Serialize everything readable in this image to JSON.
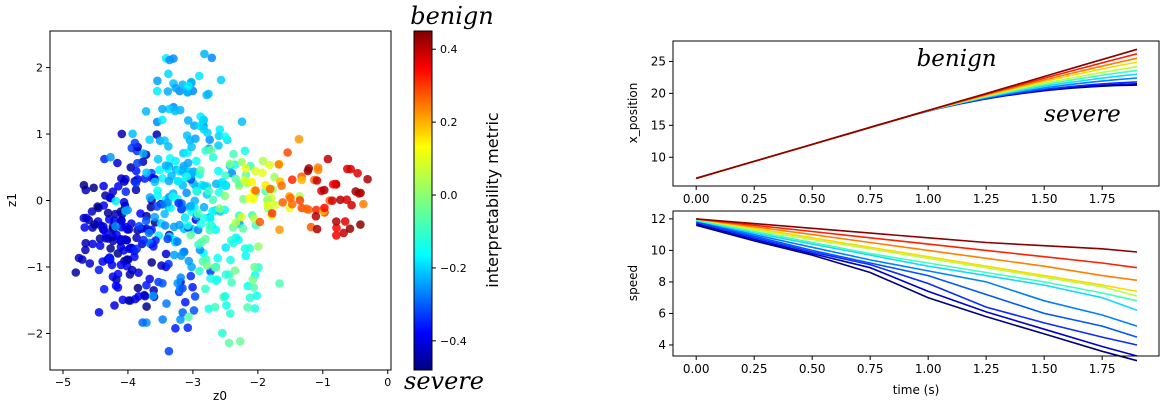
{
  "chart_data": [
    {
      "type": "scatter",
      "xlabel": "z0",
      "ylabel": "z1",
      "xlim": [
        -5.2,
        0.05
      ],
      "ylim": [
        -2.55,
        2.55
      ],
      "xticks": [
        -5,
        -4,
        -3,
        -2,
        -1,
        0
      ],
      "yticks": [
        -2,
        -1,
        0,
        1,
        2
      ],
      "color_metric_range": [
        -0.48,
        0.45
      ],
      "colormap": "jet",
      "clusters": [
        {
          "cx": -4.2,
          "cy": -0.45,
          "sx": 0.32,
          "sy": 0.42,
          "n": 95,
          "cmin": -0.48,
          "cmax": -0.36
        },
        {
          "cx": -3.95,
          "cy": -1.15,
          "sx": 0.3,
          "sy": 0.38,
          "n": 35,
          "cmin": -0.45,
          "cmax": -0.32
        },
        {
          "cx": -3.85,
          "cy": 0.55,
          "sx": 0.28,
          "sy": 0.45,
          "n": 25,
          "cmin": -0.44,
          "cmax": -0.3
        },
        {
          "cx": -3.15,
          "cy": 1.15,
          "sx": 0.32,
          "sy": 0.55,
          "n": 70,
          "cmin": -0.24,
          "cmax": -0.14
        },
        {
          "cx": -3.1,
          "cy": 0.2,
          "sx": 0.35,
          "sy": 0.5,
          "n": 70,
          "cmin": -0.22,
          "cmax": -0.12
        },
        {
          "cx": -3.35,
          "cy": -0.5,
          "sx": 0.4,
          "sy": 0.5,
          "n": 40,
          "cmin": -0.36,
          "cmax": -0.2
        },
        {
          "cx": -3.4,
          "cy": -1.55,
          "sx": 0.35,
          "sy": 0.35,
          "n": 20,
          "cmin": -0.36,
          "cmax": -0.22
        },
        {
          "cx": -2.6,
          "cy": -0.4,
          "sx": 0.35,
          "sy": 0.55,
          "n": 40,
          "cmin": -0.14,
          "cmax": -0.04
        },
        {
          "cx": -2.35,
          "cy": -1.4,
          "sx": 0.3,
          "sy": 0.4,
          "n": 30,
          "cmin": -0.12,
          "cmax": -0.02
        },
        {
          "cx": -2.4,
          "cy": 0.35,
          "sx": 0.3,
          "sy": 0.35,
          "n": 20,
          "cmin": -0.12,
          "cmax": 0.02
        },
        {
          "cx": -2.0,
          "cy": 0.05,
          "sx": 0.28,
          "sy": 0.35,
          "n": 28,
          "cmin": 0.0,
          "cmax": 0.12
        },
        {
          "cx": -1.35,
          "cy": 0.15,
          "sx": 0.3,
          "sy": 0.33,
          "n": 30,
          "cmin": 0.16,
          "cmax": 0.3
        },
        {
          "cx": -0.75,
          "cy": 0.05,
          "sx": 0.25,
          "sy": 0.3,
          "n": 32,
          "cmin": 0.32,
          "cmax": 0.45
        }
      ]
    },
    {
      "type": "line",
      "xlabel": "",
      "ylabel": "x_position",
      "xlim": [
        -0.1,
        1.995
      ],
      "ylim": [
        5.5,
        28.2
      ],
      "xticks": [
        0,
        0.25,
        0.5,
        0.75,
        1.0,
        1.25,
        1.5,
        1.75
      ],
      "yticks": [
        10,
        15,
        20,
        25
      ],
      "x_start": 0,
      "x_end": 1.9,
      "y_start": 6.7,
      "x_knee": 0.9,
      "final_values": [
        21.3,
        21.5,
        21.8,
        22.4,
        23.0,
        23.6,
        24.2,
        24.9,
        25.5,
        26.2,
        26.9
      ],
      "series_colors": [
        "#00007f",
        "#0000c8",
        "#0b2bff",
        "#0080ff",
        "#17d8ff",
        "#3fffb8",
        "#b8ff3f",
        "#ffd800",
        "#ff8000",
        "#ff2000",
        "#8b0000"
      ],
      "annotations": [
        {
          "text": "benign",
          "x": 0.95,
          "y": 24.3
        },
        {
          "text": "severe",
          "x": 1.5,
          "y": 15.6
        }
      ]
    },
    {
      "type": "line",
      "xlabel": "time (s)",
      "ylabel": "speed",
      "xlim": [
        -0.1,
        1.995
      ],
      "ylim": [
        3.3,
        12.5
      ],
      "xticks": [
        0,
        0.25,
        0.5,
        0.75,
        1.0,
        1.25,
        1.5,
        1.75
      ],
      "yticks": [
        4,
        6,
        8,
        10,
        12
      ],
      "x": [
        0,
        0.25,
        0.5,
        0.75,
        1.0,
        1.25,
        1.5,
        1.75,
        1.9
      ],
      "series": [
        {
          "color": "#00007f",
          "values": [
            11.6,
            10.6,
            9.7,
            8.6,
            7.0,
            5.8,
            4.7,
            3.6,
            3.0
          ]
        },
        {
          "color": "#0000c8",
          "values": [
            11.7,
            10.7,
            9.8,
            8.9,
            7.4,
            6.1,
            5.0,
            3.9,
            3.3
          ]
        },
        {
          "color": "#0b2bff",
          "values": [
            11.8,
            10.8,
            9.9,
            9.1,
            7.9,
            6.4,
            5.4,
            4.5,
            4.0
          ]
        },
        {
          "color": "#0055ff",
          "values": [
            11.8,
            10.9,
            10.0,
            9.2,
            8.4,
            7.2,
            6.0,
            5.2,
            4.5
          ]
        },
        {
          "color": "#0080ff",
          "values": [
            11.9,
            11.0,
            10.2,
            9.4,
            8.7,
            8.0,
            6.8,
            5.9,
            5.2
          ]
        },
        {
          "color": "#17d8ff",
          "values": [
            11.9,
            11.1,
            10.4,
            9.7,
            9.0,
            8.4,
            7.8,
            7.0,
            6.2
          ]
        },
        {
          "color": "#3fffb8",
          "values": [
            11.9,
            11.2,
            10.5,
            9.8,
            9.2,
            8.6,
            8.0,
            7.3,
            6.8
          ]
        },
        {
          "color": "#b8ff3f",
          "values": [
            12.0,
            11.3,
            10.7,
            10.1,
            9.5,
            8.9,
            8.3,
            7.7,
            7.1
          ]
        },
        {
          "color": "#ffd800",
          "values": [
            12.0,
            11.4,
            10.8,
            10.2,
            9.6,
            9.0,
            8.4,
            7.8,
            7.4
          ]
        },
        {
          "color": "#ff8000",
          "values": [
            12.0,
            11.5,
            11.0,
            10.5,
            10.0,
            9.5,
            9.0,
            8.4,
            8.1
          ]
        },
        {
          "color": "#ff2000",
          "values": [
            12.0,
            11.6,
            11.2,
            10.8,
            10.4,
            10.0,
            9.6,
            9.2,
            8.9
          ]
        },
        {
          "color": "#8b0000",
          "values": [
            12.0,
            11.7,
            11.4,
            11.1,
            10.8,
            10.5,
            10.3,
            10.1,
            9.9
          ]
        }
      ]
    }
  ],
  "colorbar": {
    "label": "interpretability metric",
    "ticks": [
      0.4,
      0.2,
      0.0,
      -0.2,
      -0.4
    ],
    "range": [
      -0.48,
      0.45
    ],
    "top_label": "benign",
    "bottom_label": "severe"
  }
}
